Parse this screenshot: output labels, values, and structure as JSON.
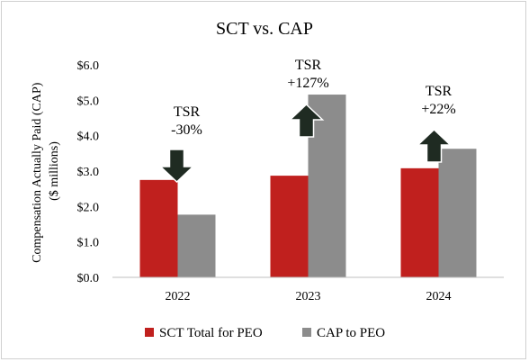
{
  "chart_data": {
    "type": "bar",
    "title": "SCT vs. CAP",
    "ylabel_line1": "Compensation Actually Paid (CAP)",
    "ylabel_line2": "($ millions)",
    "categories": [
      "2022",
      "2023",
      "2024"
    ],
    "ylim": [
      0,
      6
    ],
    "yticks": [
      {
        "value": 0,
        "label": "$0.0"
      },
      {
        "value": 1,
        "label": "$1.0"
      },
      {
        "value": 2,
        "label": "$2.0"
      },
      {
        "value": 3,
        "label": "$3.0"
      },
      {
        "value": 4,
        "label": "$4.0"
      },
      {
        "value": 5,
        "label": "$5.0"
      },
      {
        "value": 6,
        "label": "$6.0"
      }
    ],
    "grid": false,
    "legend_position": "bottom",
    "series": [
      {
        "name": "SCT Total for PEO",
        "color": "#c0201e",
        "values": [
          2.75,
          2.87,
          3.08
        ]
      },
      {
        "name": "CAP to PEO",
        "color": "#8c8c8c",
        "values": [
          1.77,
          5.16,
          3.63
        ]
      }
    ],
    "annotations": [
      {
        "category": "2022",
        "line1": "TSR",
        "line2": "-30%",
        "direction": "down"
      },
      {
        "category": "2023",
        "line1": "TSR",
        "line2": "+127%",
        "direction": "up"
      },
      {
        "category": "2024",
        "line1": "TSR",
        "line2": "+22%",
        "direction": "up"
      }
    ],
    "arrow_color": "#1f2b22",
    "arrow_outline": "#ffffff"
  }
}
